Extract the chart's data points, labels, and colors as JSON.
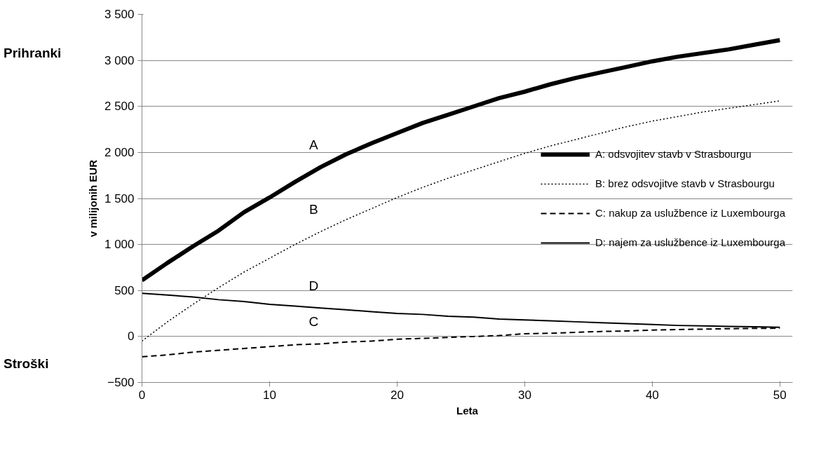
{
  "chart_data": {
    "type": "line",
    "xlabel": "Leta",
    "ylabel": "v milijonih EUR",
    "x": [
      0,
      2,
      4,
      6,
      8,
      10,
      12,
      14,
      16,
      18,
      20,
      22,
      24,
      26,
      28,
      30,
      32,
      34,
      36,
      38,
      40,
      42,
      44,
      46,
      48,
      50
    ],
    "series": [
      {
        "name": "A: odsvojitev stavb v Strasbourgu",
        "color": "#000000",
        "line_style": "solid",
        "values": [
          610,
          800,
          980,
          1150,
          1350,
          1510,
          1680,
          1840,
          1980,
          2100,
          2210,
          2320,
          2410,
          2500,
          2590,
          2660,
          2740,
          2810,
          2870,
          2930,
          2990,
          3040,
          3080,
          3120,
          3170,
          3220
        ]
      },
      {
        "name": "B: brez odsvojitve stavb v Strasbourgu",
        "color": "#000000",
        "line_style": "dotted",
        "values": [
          -50,
          160,
          350,
          530,
          700,
          850,
          1000,
          1140,
          1270,
          1390,
          1510,
          1620,
          1720,
          1810,
          1900,
          1990,
          2070,
          2140,
          2210,
          2280,
          2340,
          2390,
          2440,
          2480,
          2520,
          2560
        ]
      },
      {
        "name": "C: nakup za uslužbence iz Luxembourga",
        "color": "#000000",
        "line_style": "dashed",
        "values": [
          -220,
          -200,
          -170,
          -150,
          -130,
          -110,
          -90,
          -80,
          -60,
          -50,
          -30,
          -20,
          -10,
          0,
          10,
          30,
          35,
          45,
          55,
          60,
          70,
          75,
          80,
          85,
          88,
          90
        ]
      },
      {
        "name": "D: najem za uslužbence iz Luxembourga",
        "color": "#000000",
        "line_style": "solid",
        "values": [
          470,
          450,
          430,
          400,
          380,
          350,
          330,
          310,
          290,
          270,
          250,
          240,
          220,
          210,
          190,
          180,
          170,
          160,
          150,
          140,
          130,
          120,
          115,
          110,
          105,
          100
        ]
      }
    ],
    "xlim": [
      0,
      51
    ],
    "xticks": [
      0,
      10,
      20,
      30,
      40,
      50
    ],
    "ylim": [
      -500,
      3500
    ],
    "yticks": [
      -500,
      0,
      500,
      {
        "value": 1000,
        "label": "1 000"
      },
      {
        "value": 1500,
        "label": "1 500"
      },
      {
        "value": 2000,
        "label": "2 000"
      },
      {
        "value": 2500,
        "label": "2 500"
      },
      {
        "value": 3000,
        "label": "3 000"
      },
      {
        "value": 3500,
        "label": "3 500"
      }
    ],
    "grid": "y",
    "legend": "right",
    "marker": "none",
    "annotations": [
      "Prihranki",
      "Stroški",
      "A",
      "B",
      "C",
      "D"
    ]
  }
}
